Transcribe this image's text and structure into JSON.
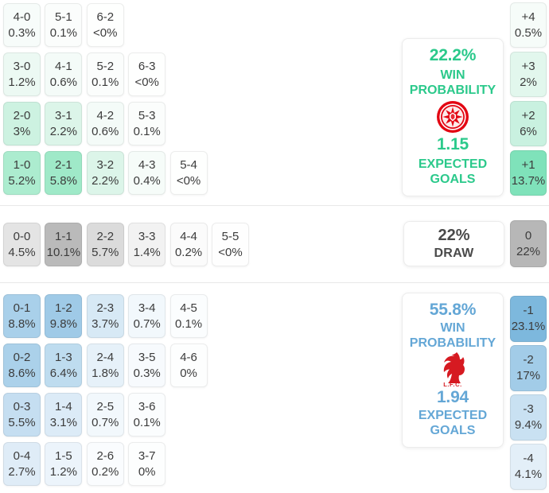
{
  "theme": {
    "home_accent": "#2bc98b",
    "away_accent": "#64a7d6",
    "draw_text": "#4a4a4a",
    "home_crest_red": "#e30613",
    "away_crest_red": "#d61a21"
  },
  "home_card": {
    "win_probability": "22.2%",
    "win_label_1": "WIN",
    "win_label_2": "PROBABILITY",
    "crest_icon": "eintracht-frankfurt-crest",
    "expected_goals": "1.15",
    "goals_label_1": "EXPECTED",
    "goals_label_2": "GOALS"
  },
  "draw_card": {
    "probability": "22%",
    "label": "DRAW"
  },
  "away_card": {
    "win_probability": "55.8%",
    "win_label_1": "WIN",
    "win_label_2": "PROBABILITY",
    "crest_icon": "liverpool-liver-bird",
    "crest_caption": "L.F.C.",
    "expected_goals": "1.94",
    "goals_label_1": "EXPECTED",
    "goals_label_2": "GOALS"
  },
  "chart_data": {
    "type": "heatmap",
    "sections": [
      {
        "name": "home-win",
        "rows": [
          [
            {
              "score": "4-0",
              "pct": "0.3%",
              "bg": "#f7fcfa"
            },
            {
              "score": "5-1",
              "pct": "0.1%",
              "bg": "#fbfdfc"
            },
            {
              "score": "6-2",
              "pct": "<0%",
              "bg": "#fefffe"
            }
          ],
          [
            {
              "score": "3-0",
              "pct": "1.2%",
              "bg": "#ecf9f3"
            },
            {
              "score": "4-1",
              "pct": "0.6%",
              "bg": "#f4fbf8"
            },
            {
              "score": "5-2",
              "pct": "0.1%",
              "bg": "#fbfdfc"
            },
            {
              "score": "6-3",
              "pct": "<0%",
              "bg": "#fefffe"
            }
          ],
          [
            {
              "score": "2-0",
              "pct": "3%",
              "bg": "#cdf2e1"
            },
            {
              "score": "3-1",
              "pct": "2.2%",
              "bg": "#dcf5e9"
            },
            {
              "score": "4-2",
              "pct": "0.6%",
              "bg": "#f4fbf8"
            },
            {
              "score": "5-3",
              "pct": "0.1%",
              "bg": "#fbfdfc"
            }
          ],
          [
            {
              "score": "1-0",
              "pct": "5.2%",
              "bg": "#aceccf"
            },
            {
              "score": "2-1",
              "pct": "5.8%",
              "bg": "#9fe9c8"
            },
            {
              "score": "3-2",
              "pct": "2.2%",
              "bg": "#dcf5e9"
            },
            {
              "score": "4-3",
              "pct": "0.4%",
              "bg": "#f6fcf9"
            },
            {
              "score": "5-4",
              "pct": "<0%",
              "bg": "#fefffe"
            }
          ]
        ],
        "goal_diffs": [
          {
            "label": "+4",
            "pct": "0.5%",
            "bg": "#f6fcf9"
          },
          {
            "label": "+3",
            "pct": "2%",
            "bg": "#e2f7ed"
          },
          {
            "label": "+2",
            "pct": "6%",
            "bg": "#c9f1e0"
          },
          {
            "label": "+1",
            "pct": "13.7%",
            "bg": "#7fe2ba"
          }
        ]
      },
      {
        "name": "draw",
        "rows": [
          [
            {
              "score": "0-0",
              "pct": "4.5%",
              "bg": "#e4e4e4"
            },
            {
              "score": "1-1",
              "pct": "10.1%",
              "bg": "#bababa"
            },
            {
              "score": "2-2",
              "pct": "5.7%",
              "bg": "#dbdbdb"
            },
            {
              "score": "3-3",
              "pct": "1.4%",
              "bg": "#f2f2f2"
            },
            {
              "score": "4-4",
              "pct": "0.2%",
              "bg": "#fbfbfb"
            },
            {
              "score": "5-5",
              "pct": "<0%",
              "bg": "#fefefe"
            }
          ]
        ],
        "goal_diffs": [
          {
            "label": "0",
            "pct": "22%",
            "bg": "#b7b7b7"
          }
        ]
      },
      {
        "name": "away-win",
        "rows": [
          [
            {
              "score": "0-1",
              "pct": "8.8%",
              "bg": "#a9d0ea"
            },
            {
              "score": "1-2",
              "pct": "9.8%",
              "bg": "#9fcae7"
            },
            {
              "score": "2-3",
              "pct": "3.7%",
              "bg": "#d7e9f5"
            },
            {
              "score": "3-4",
              "pct": "0.7%",
              "bg": "#f2f8fc"
            },
            {
              "score": "4-5",
              "pct": "0.1%",
              "bg": "#fbfdfe"
            }
          ],
          [
            {
              "score": "0-2",
              "pct": "8.6%",
              "bg": "#abd1ea"
            },
            {
              "score": "1-3",
              "pct": "6.4%",
              "bg": "#bedcef"
            },
            {
              "score": "2-4",
              "pct": "1.8%",
              "bg": "#e6f1f9"
            },
            {
              "score": "3-5",
              "pct": "0.3%",
              "bg": "#f7fafd"
            },
            {
              "score": "4-6",
              "pct": "0%",
              "bg": "#fdfefe"
            }
          ],
          [
            {
              "score": "0-3",
              "pct": "5.5%",
              "bg": "#c5def1"
            },
            {
              "score": "1-4",
              "pct": "3.1%",
              "bg": "#dcebf7"
            },
            {
              "score": "2-5",
              "pct": "0.7%",
              "bg": "#f2f8fc"
            },
            {
              "score": "3-6",
              "pct": "0.1%",
              "bg": "#fbfdfe"
            }
          ],
          [
            {
              "score": "0-4",
              "pct": "2.7%",
              "bg": "#dfecf7"
            },
            {
              "score": "1-5",
              "pct": "1.2%",
              "bg": "#ecf4fb"
            },
            {
              "score": "2-6",
              "pct": "0.2%",
              "bg": "#fafcfe"
            },
            {
              "score": "3-7",
              "pct": "0%",
              "bg": "#fdfefe"
            }
          ]
        ],
        "goal_diffs": [
          {
            "label": "-1",
            "pct": "23.1%",
            "bg": "#7db8dd"
          },
          {
            "label": "-2",
            "pct": "17%",
            "bg": "#a2cce8"
          },
          {
            "label": "-3",
            "pct": "9.4%",
            "bg": "#c9e1f2"
          },
          {
            "label": "-4",
            "pct": "4.1%",
            "bg": "#e3eff8"
          }
        ]
      }
    ]
  }
}
